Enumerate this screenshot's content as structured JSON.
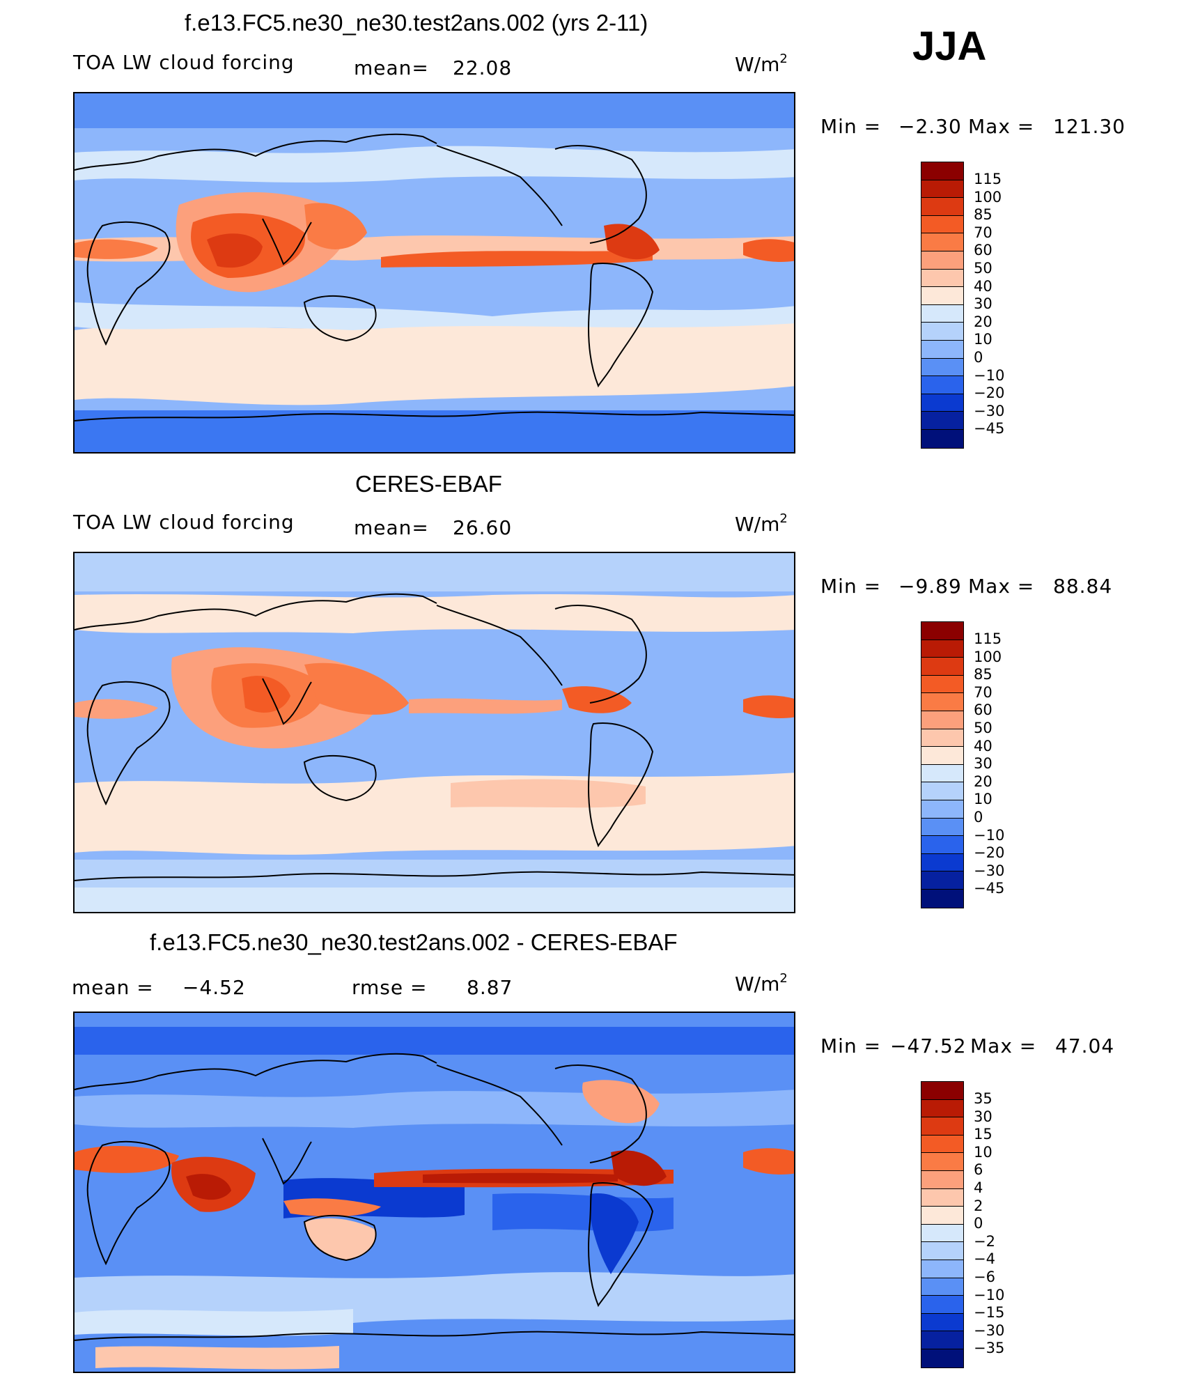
{
  "season": "JJA",
  "units_base": "W/m",
  "units_exp": "2",
  "panels": [
    {
      "title": "f.e13.FC5.ne30_ne30.test2ans.002 (yrs 2-11)",
      "variable": "TOA LW cloud forcing",
      "stat1_label": "mean=",
      "stat1_value": "22.08",
      "min_label": "Min =",
      "min_value": "−2.30",
      "max_label": "Max =",
      "max_value": "121.30",
      "legend_labels": [
        "115",
        "100",
        "85",
        "70",
        "60",
        "50",
        "40",
        "30",
        "20",
        "10",
        "0",
        "−10",
        "−20",
        "−30",
        "−45"
      ],
      "colors": [
        "#8b0000",
        "#b91b05",
        "#dd3a12",
        "#f35b25",
        "#fa7b45",
        "#fca07c",
        "#fdc7ad",
        "#fde8d9",
        "#d6e8fb",
        "#b5d2fb",
        "#8db6fb",
        "#5a90f5",
        "#2a63ec",
        "#0b3ad0",
        "#0621a0",
        "#00107a"
      ]
    },
    {
      "title": "CERES-EBAF",
      "variable": "TOA LW cloud forcing",
      "stat1_label": "mean=",
      "stat1_value": "26.60",
      "min_label": "Min =",
      "min_value": "−9.89",
      "max_label": "Max =",
      "max_value": "88.84",
      "legend_labels": [
        "115",
        "100",
        "85",
        "70",
        "60",
        "50",
        "40",
        "30",
        "20",
        "10",
        "0",
        "−10",
        "−20",
        "−30",
        "−45"
      ],
      "colors": [
        "#8b0000",
        "#b91b05",
        "#dd3a12",
        "#f35b25",
        "#fa7b45",
        "#fca07c",
        "#fdc7ad",
        "#fde8d9",
        "#d6e8fb",
        "#b5d2fb",
        "#8db6fb",
        "#5a90f5",
        "#2a63ec",
        "#0b3ad0",
        "#0621a0",
        "#00107a"
      ]
    },
    {
      "title": "f.e13.FC5.ne30_ne30.test2ans.002 - CERES-EBAF",
      "stat1_label": "mean =",
      "stat1_value": "−4.52",
      "stat2_label": "rmse =",
      "stat2_value": "8.87",
      "min_label": "Min =",
      "min_value": "−47.52",
      "max_label": "Max =",
      "max_value": "47.04",
      "legend_labels": [
        "35",
        "30",
        "15",
        "10",
        "6",
        "4",
        "2",
        "0",
        "−2",
        "−4",
        "−6",
        "−10",
        "−15",
        "−30",
        "−35"
      ],
      "colors": [
        "#8b0000",
        "#b91b05",
        "#dd3a12",
        "#f35b25",
        "#fa7b45",
        "#fca07c",
        "#fdc7ad",
        "#fde8d9",
        "#d6e8fb",
        "#b5d2fb",
        "#8db6fb",
        "#5a90f5",
        "#2a63ec",
        "#0b3ad0",
        "#0621a0",
        "#00107a"
      ]
    }
  ]
}
